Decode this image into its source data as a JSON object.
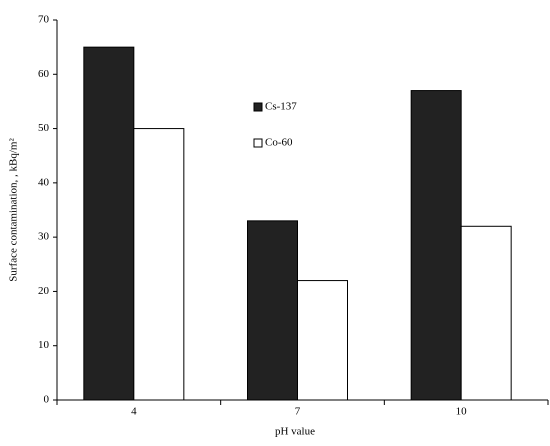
{
  "chart_data": {
    "type": "bar",
    "y_label": "Surface contamination, , kBq/m²",
    "x_label": "pH value",
    "categories": [
      "4",
      "7",
      "10"
    ],
    "series": [
      {
        "name": "Cs-137",
        "color": "#222222",
        "values": [
          65,
          33,
          57
        ]
      },
      {
        "name": "Co-60",
        "color": "#ffffff",
        "values": [
          50,
          22,
          32
        ]
      }
    ],
    "ylim": [
      0,
      70
    ],
    "yticks": [
      0,
      10,
      20,
      30,
      40,
      50,
      60,
      70
    ],
    "grid": false
  }
}
